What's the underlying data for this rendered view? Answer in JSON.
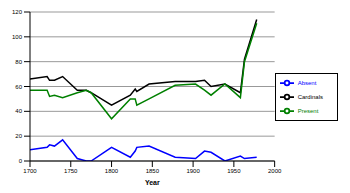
{
  "chart_data": {
    "type": "line",
    "x_label": "Year",
    "x": [
      1700,
      1721,
      1724,
      1730,
      1740,
      1758,
      1769,
      1775,
      1800,
      1823,
      1829,
      1831,
      1846,
      1878,
      1903,
      1914,
      1922,
      1939,
      1958,
      1963,
      1978
    ],
    "series": [
      {
        "name": "Cardinals",
        "color": "#000000",
        "values": [
          66,
          68,
          65,
          65,
          68,
          57,
          57,
          55,
          45,
          53,
          58,
          56,
          62,
          64,
          64,
          65,
          60,
          62,
          55,
          82,
          114
        ]
      },
      {
        "name": "Present",
        "color": "#008000",
        "values": [
          57,
          57,
          52,
          53,
          51,
          55,
          57,
          55,
          34,
          50,
          50,
          45,
          50,
          61,
          62,
          57,
          53,
          62,
          51,
          80,
          111
        ]
      },
      {
        "name": "Absent",
        "color": "#0000ff",
        "values": [
          9,
          11,
          13,
          12,
          17,
          2,
          0,
          0,
          11,
          3,
          8,
          11,
          12,
          3,
          2,
          8,
          7,
          0,
          4,
          2,
          3
        ]
      }
    ],
    "xlim": [
      1700,
      2000
    ],
    "xticks": [
      1700,
      1750,
      1800,
      1850,
      1900,
      1950,
      2000
    ],
    "ylim": [
      0,
      120
    ],
    "yticks": [
      0,
      20,
      40,
      60,
      80,
      100,
      120
    ],
    "grid": true,
    "legend": "right"
  }
}
